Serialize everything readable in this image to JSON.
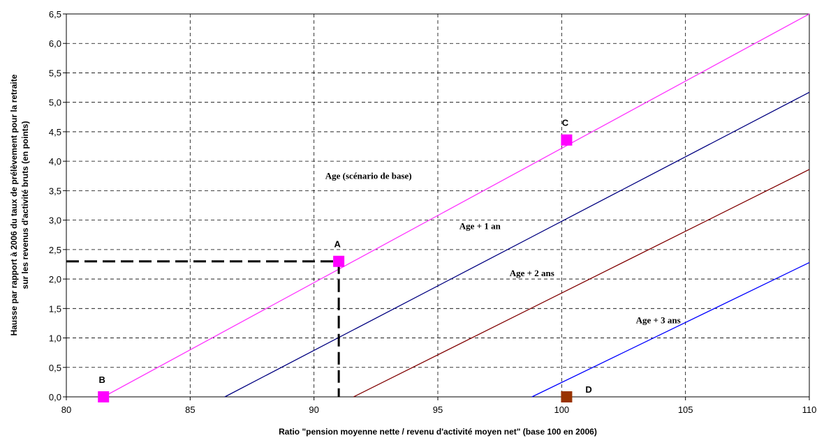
{
  "chart_data": {
    "type": "line",
    "xlabel": "Ratio \"pension moyenne nette / revenu d'activité moyen net\" (base 100 en 2006)",
    "ylabel_lines": [
      "Hausse par rapport à 2006 du taux de prélèvement pour la retraite",
      "sur les revenus d'activité bruts (en points)"
    ],
    "xlim": [
      80,
      110
    ],
    "ylim": [
      0,
      6.5
    ],
    "x_ticks": [
      80,
      85,
      90,
      95,
      100,
      105,
      110
    ],
    "x_tick_labels": [
      "80",
      "85",
      "90",
      "95",
      "100",
      "105",
      "110"
    ],
    "y_ticks": [
      0,
      0.5,
      1,
      1.5,
      2,
      2.5,
      3,
      3.5,
      4,
      4.5,
      5,
      5.5,
      6,
      6.5
    ],
    "y_tick_labels": [
      "0,0",
      "0,5",
      "1,0",
      "1,5",
      "2,0",
      "2,5",
      "3,0",
      "3,5",
      "4,0",
      "4,5",
      "5,0",
      "5,5",
      "6,0",
      "6,5"
    ],
    "grid": true,
    "series": [
      {
        "label": "Age (scénario de base)",
        "color": "#ff33ff",
        "x": [
          81.5,
          110
        ],
        "y": [
          0,
          6.5
        ],
        "label_at": [
          92.2,
          3.7
        ]
      },
      {
        "label": "Age + 1 an",
        "color": "#000080",
        "x": [
          86.4,
          110
        ],
        "y": [
          0,
          5.17
        ],
        "label_at": [
          96.7,
          2.85
        ]
      },
      {
        "label": "Age + 2 ans",
        "color": "#800000",
        "x": [
          91.6,
          110
        ],
        "y": [
          0,
          3.86
        ],
        "label_at": [
          98.8,
          2.05
        ]
      },
      {
        "label": "Age + 3 ans",
        "color": "#0000ff",
        "x": [
          98.8,
          110
        ],
        "y": [
          0,
          2.28
        ],
        "label_at": [
          103.9,
          1.25
        ]
      }
    ],
    "points": [
      {
        "label": "A",
        "x": 91.0,
        "y": 2.3,
        "color": "#ff00ff"
      },
      {
        "label": "B",
        "x": 81.5,
        "y": 0.0,
        "color": "#ff00ff"
      },
      {
        "label": "C",
        "x": 100.2,
        "y": 4.36,
        "color": "#ff00ff"
      },
      {
        "label": "D",
        "x": 100.2,
        "y": 0.0,
        "color": "#993300"
      }
    ],
    "reference_lines": [
      {
        "x": 91.0,
        "y": 2.3,
        "style": "dashed",
        "color": "#000000"
      }
    ]
  }
}
